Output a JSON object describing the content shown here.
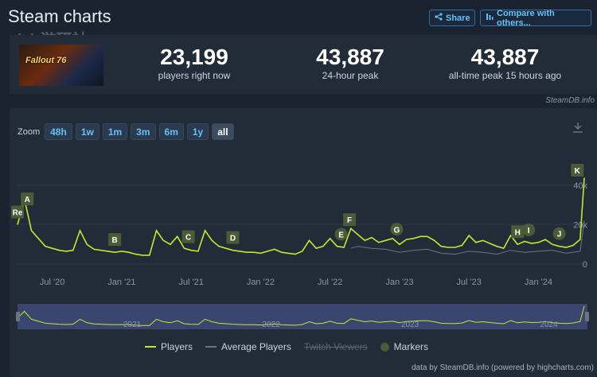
{
  "header": {
    "title": "Steam charts",
    "watermark": "(+) 游研社",
    "share_label": "Share",
    "compare_label": "Compare with others..."
  },
  "game": {
    "logo_text": "Fallout 76"
  },
  "stats": [
    {
      "value": "23,199",
      "label": "players right now"
    },
    {
      "value": "43,887",
      "label": "24-hour peak"
    },
    {
      "value": "43,887",
      "label": "all-time peak 15 hours ago"
    }
  ],
  "credit": "SteamDB.info",
  "zoom": {
    "label": "Zoom",
    "buttons": [
      "48h",
      "1w",
      "1m",
      "3m",
      "6m",
      "1y",
      "all"
    ],
    "active": "all"
  },
  "chart_data": {
    "type": "line",
    "x_tick_labels": [
      "Jul '20",
      "Jan '21",
      "Jul '21",
      "Jan '22",
      "Jul '22",
      "Jan '23",
      "Jul '23",
      "Jan '24"
    ],
    "y_tick_labels": [
      "0",
      "20k",
      "40k"
    ],
    "ylim": [
      0,
      45000
    ],
    "series": [
      {
        "name": "Players",
        "color": "#c5e82a",
        "x": [
          2020.25,
          2020.3,
          2020.35,
          2020.4,
          2020.45,
          2020.5,
          2020.55,
          2020.6,
          2020.65,
          2020.7,
          2020.75,
          2020.8,
          2020.85,
          2020.9,
          2020.95,
          2021.0,
          2021.05,
          2021.1,
          2021.15,
          2021.2,
          2021.25,
          2021.3,
          2021.35,
          2021.4,
          2021.45,
          2021.5,
          2021.55,
          2021.6,
          2021.65,
          2021.7,
          2021.75,
          2021.8,
          2021.85,
          2021.9,
          2021.95,
          2022.0,
          2022.05,
          2022.1,
          2022.15,
          2022.2,
          2022.25,
          2022.3,
          2022.35,
          2022.4,
          2022.45,
          2022.5,
          2022.55,
          2022.6,
          2022.65,
          2022.7,
          2022.75,
          2022.8,
          2022.85,
          2022.9,
          2022.95,
          2023.0,
          2023.05,
          2023.1,
          2023.15,
          2023.2,
          2023.25,
          2023.3,
          2023.35,
          2023.4,
          2023.45,
          2023.5,
          2023.55,
          2023.6,
          2023.65,
          2023.7,
          2023.75,
          2023.8,
          2023.85,
          2023.9,
          2023.95,
          2024.0,
          2024.05,
          2024.1,
          2024.15,
          2024.2,
          2024.25,
          2024.3,
          2024.33
        ],
        "y": [
          20000,
          33000,
          17000,
          13000,
          9000,
          8000,
          7000,
          6500,
          7000,
          17000,
          10000,
          7500,
          7000,
          6500,
          6000,
          6500,
          6000,
          5000,
          4500,
          4500,
          17000,
          12000,
          10000,
          14000,
          8000,
          7000,
          6500,
          17000,
          12000,
          9000,
          8000,
          7000,
          6500,
          6000,
          6000,
          5500,
          6500,
          7500,
          6000,
          5500,
          5000,
          6500,
          12000,
          8000,
          9000,
          13000,
          9000,
          8500,
          18000,
          15000,
          12000,
          13500,
          11000,
          12000,
          13000,
          10000,
          12500,
          13000,
          14000,
          14000,
          12000,
          9000,
          8500,
          8500,
          9500,
          14500,
          11000,
          12000,
          10500,
          9000,
          8000,
          14500,
          10000,
          11500,
          10500,
          11000,
          12500,
          10000,
          9000,
          8500,
          9500,
          12500,
          43887
        ]
      },
      {
        "name": "Average Players",
        "color": "#6b7580",
        "x": [
          2022.65,
          2022.7,
          2022.8,
          2022.9,
          2023.0,
          2023.1,
          2023.2,
          2023.3,
          2023.4,
          2023.5,
          2023.6,
          2023.7,
          2023.8,
          2023.9,
          2024.0,
          2024.1,
          2024.2,
          2024.3,
          2024.33
        ],
        "y": [
          8000,
          9000,
          8000,
          7500,
          6000,
          7000,
          7500,
          5500,
          5000,
          6500,
          6000,
          5000,
          7000,
          6000,
          6500,
          7000,
          5500,
          6500,
          22000
        ]
      }
    ],
    "markers": [
      {
        "label": "Re",
        "x": 2020.25
      },
      {
        "label": "A",
        "x": 2020.32
      },
      {
        "label": "B",
        "x": 2020.95
      },
      {
        "label": "C",
        "x": 2021.48
      },
      {
        "label": "D",
        "x": 2021.8
      },
      {
        "label": "E",
        "x": 2022.58
      },
      {
        "label": "F",
        "x": 2022.64
      },
      {
        "label": "G",
        "x": 2022.98
      },
      {
        "label": "H",
        "x": 2023.85
      },
      {
        "label": "I",
        "x": 2023.93
      },
      {
        "label": "J",
        "x": 2024.15
      },
      {
        "label": "K",
        "x": 2024.28
      }
    ],
    "navigator_years": [
      "2021",
      "2022",
      "2023",
      "2024"
    ],
    "grid": true
  },
  "legend": {
    "players": "Players",
    "average": "Average Players",
    "twitch": "Twitch Viewers",
    "markers": "Markers"
  },
  "footer": "data by SteamDB.info (powered by highcharts.com)"
}
